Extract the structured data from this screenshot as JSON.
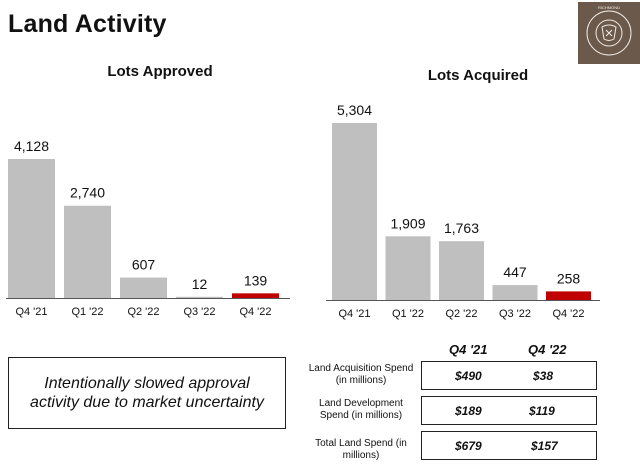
{
  "page": {
    "title": "Land Activity",
    "note": "Intentionally slowed approval activity due to market uncertainty"
  },
  "logo": {
    "name": "richmond-american-homes-logo",
    "ring_text": "RICHMOND AMERICAN HOMES",
    "monogram": "MDC",
    "bg_color": "#6b5a4c"
  },
  "colors": {
    "bar": "#bfbfbf",
    "highlight": "#c00000",
    "axis": "#555555"
  },
  "chart_data": [
    {
      "type": "bar",
      "title": "Lots Approved",
      "categories": [
        "Q4 '21",
        "Q1 '22",
        "Q2 '22",
        "Q3 '22",
        "Q4 '22"
      ],
      "values": [
        4128,
        2740,
        607,
        12,
        139
      ],
      "data_labels": [
        "4,128",
        "2,740",
        "607",
        "12",
        "139"
      ],
      "highlight_index": 4,
      "xlabel": "",
      "ylabel": "",
      "ylim": [
        0,
        4300
      ],
      "grid": false,
      "legend": "none"
    },
    {
      "type": "bar",
      "title": "Lots Acquired",
      "categories": [
        "Q4 '21",
        "Q1 '22",
        "Q2 '22",
        "Q3 '22",
        "Q4 '22"
      ],
      "values": [
        5304,
        1909,
        1763,
        447,
        258
      ],
      "data_labels": [
        "5,304",
        "1,909",
        "1,763",
        "447",
        "258"
      ],
      "highlight_index": 4,
      "xlabel": "",
      "ylabel": "",
      "ylim": [
        0,
        5600
      ],
      "grid": false,
      "legend": "none"
    }
  ],
  "spend_table": {
    "columns": [
      "Q4 '21",
      "Q4 '22"
    ],
    "rows": [
      {
        "label": "Land Acquisition Spend (in millions)",
        "values": [
          "$490",
          "$38"
        ]
      },
      {
        "label": "Land Development Spend (in millions)",
        "values": [
          "$189",
          "$119"
        ]
      },
      {
        "label": "Total Land Spend (in millions)",
        "values": [
          "$679",
          "$157"
        ]
      }
    ]
  }
}
